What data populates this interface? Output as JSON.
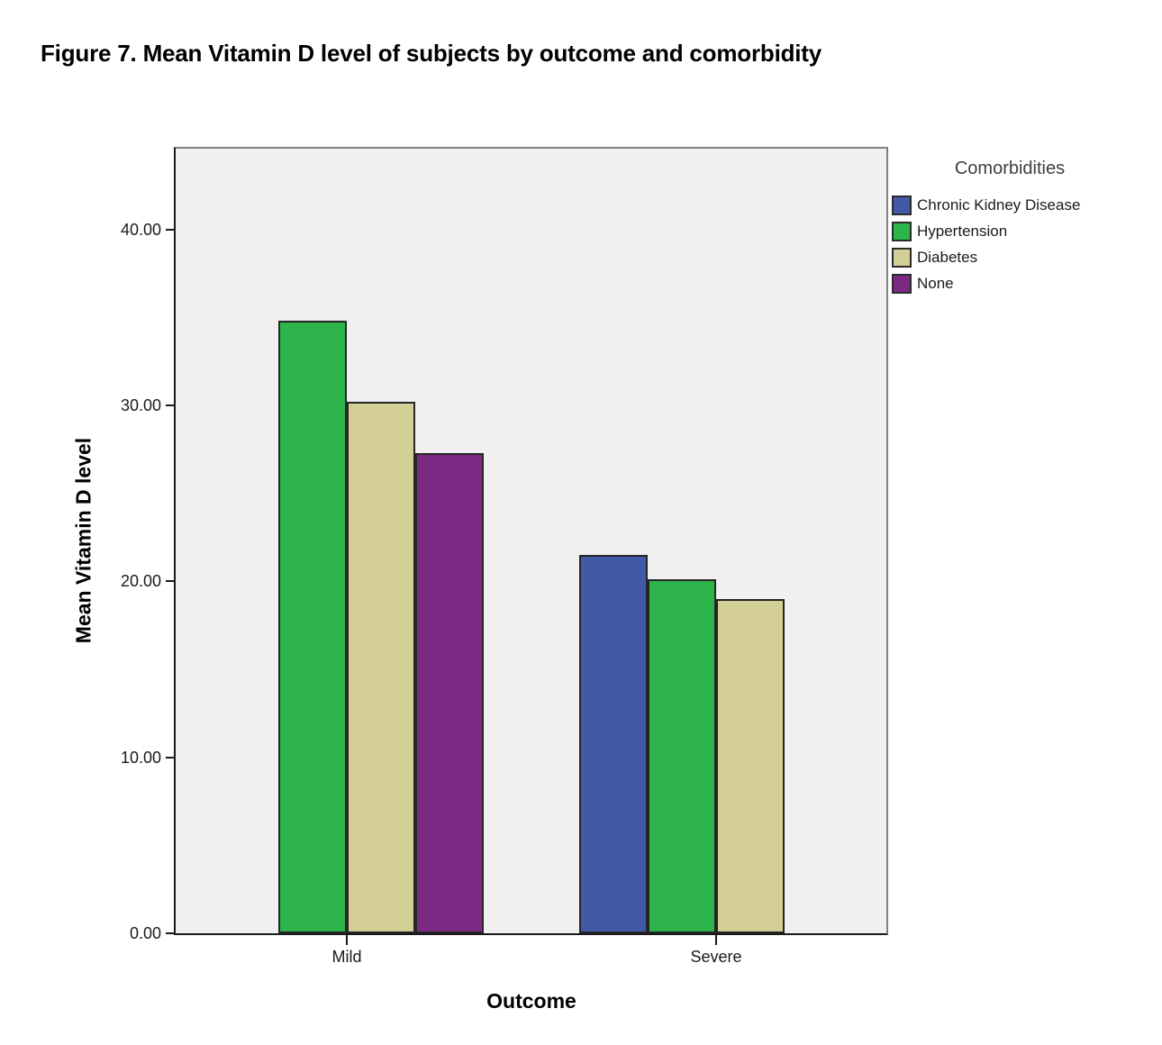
{
  "figure_title": "Figure 7. Mean Vitamin D level of subjects by outcome and comorbidity",
  "chart_data": {
    "type": "bar",
    "categories": [
      "Mild",
      "Severe"
    ],
    "series": [
      {
        "name": "Chronic Kidney Disease",
        "color": "#4159A7",
        "values": [
          null,
          21.5
        ]
      },
      {
        "name": "Hypertension",
        "color": "#2DB44B",
        "values": [
          34.8,
          20.1
        ]
      },
      {
        "name": "Diabetes",
        "color": "#D3CF96",
        "values": [
          30.2,
          19.0
        ]
      },
      {
        "name": "None",
        "color": "#7B2982",
        "values": [
          27.3,
          null
        ]
      }
    ],
    "xlabel": "Outcome",
    "ylabel": "Mean Vitamin D level",
    "ylim": [
      0,
      44.6
    ],
    "yticks": [
      0,
      10,
      20,
      30,
      40
    ],
    "ytick_labels": [
      "0.00",
      "10.00",
      "20.00",
      "30.00",
      "40.00"
    ],
    "legend_title": "Comorbidities",
    "legend_position": "right",
    "grid": false,
    "plot_bg": "#F0F0F0",
    "bar_border_color": "#262626"
  }
}
